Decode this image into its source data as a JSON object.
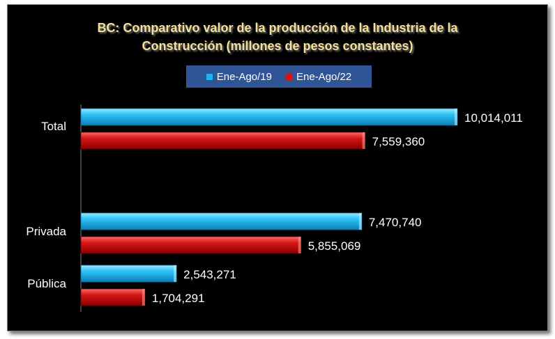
{
  "chart_data": {
    "type": "bar",
    "orientation": "horizontal",
    "title": "BC: Comparativo valor de la producción de la Industria de la Construcción (millones de pesos constantes)",
    "title_lines": [
      "BC: Comparativo valor de la producción de la Industria de la",
      "Construcción (millones de pesos constantes)"
    ],
    "categories": [
      "Total",
      "Privada",
      "Pública"
    ],
    "series": [
      {
        "name": "Ene-Ago/19",
        "color": "#1fb4ef",
        "values": [
          10014011,
          7470740,
          2543271
        ],
        "labels": [
          "10,014,011",
          "7,470,740",
          "2,543,271"
        ]
      },
      {
        "name": "Ene-Ago/22",
        "color": "#d41414",
        "values": [
          7559360,
          5855069,
          1704291
        ],
        "labels": [
          "7,559,360",
          "5,855,069",
          "1,704,291"
        ]
      }
    ],
    "legend_position": "top",
    "grid": false,
    "xlim": [
      0,
      10014011
    ]
  }
}
